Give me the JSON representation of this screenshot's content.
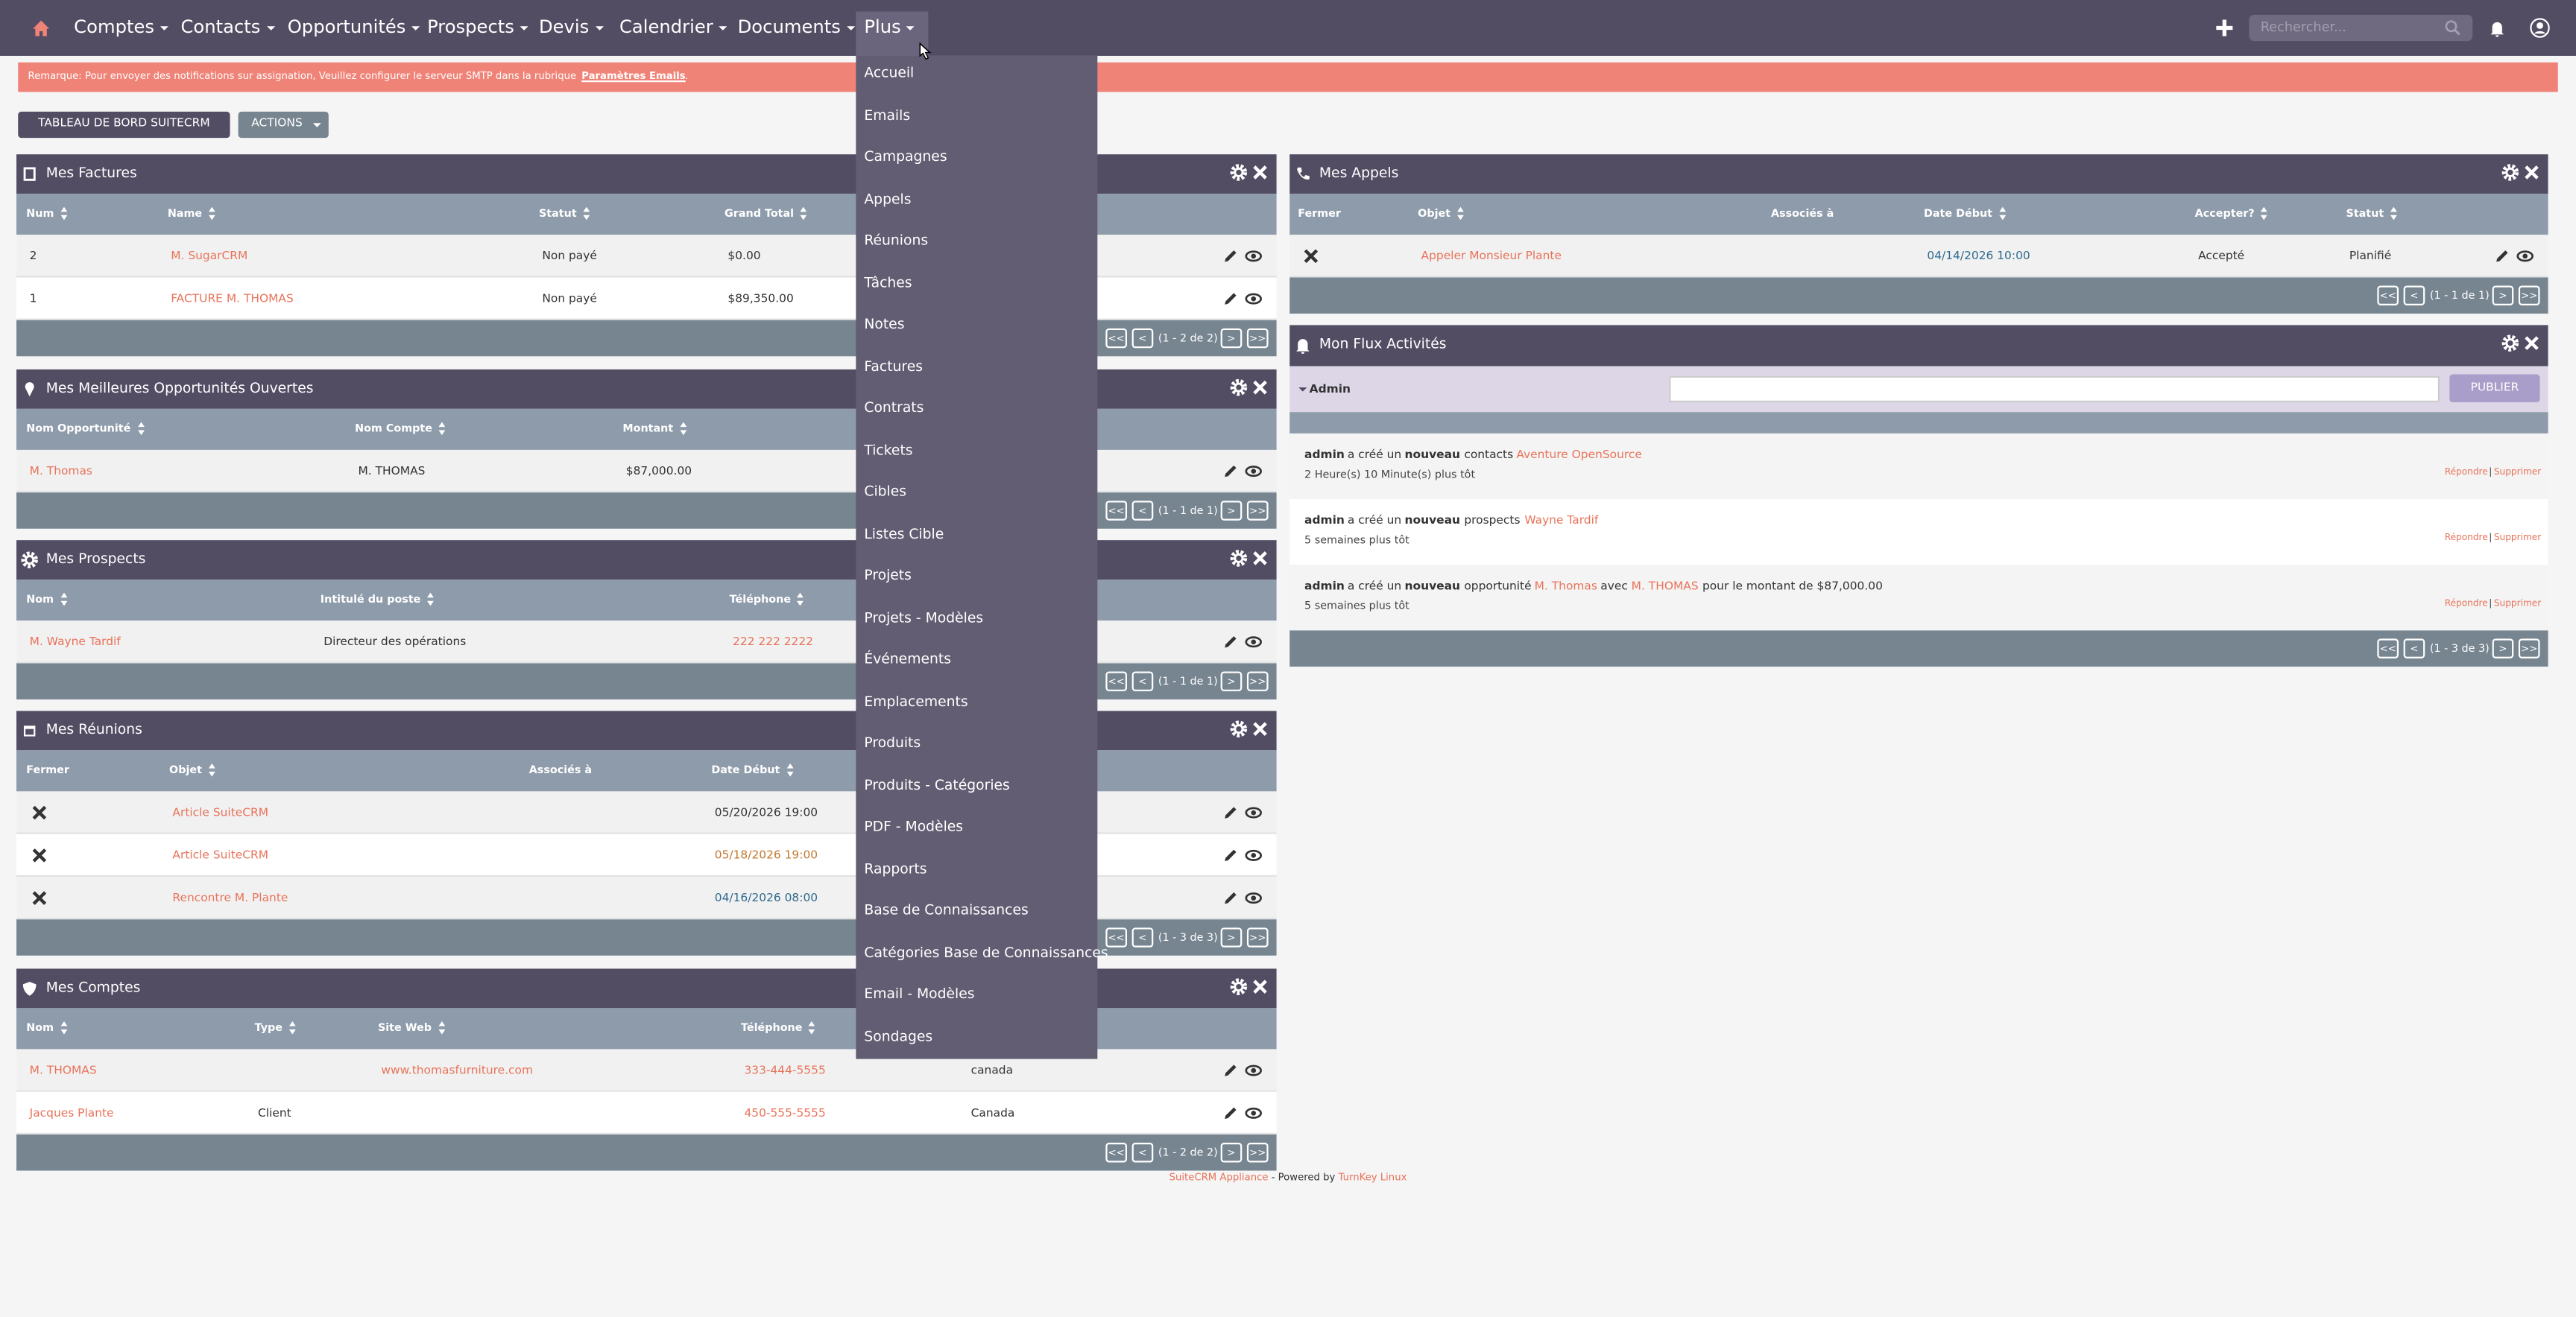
{
  "nav": {
    "items": [
      "Comptes",
      "Contacts",
      "Opportunités",
      "Prospects",
      "Devis",
      "Calendrier",
      "Documents",
      "Plus"
    ],
    "search_placeholder": "Rechercher..."
  },
  "notice": {
    "text": "Remarque: Pour envoyer des notifications sur assignation, Veuillez configurer le serveur SMTP dans la rubrique",
    "link": "Paramètres Emails",
    "end": "."
  },
  "toolbar": {
    "dashboard": "TABLEAU DE BORD SUITECRM",
    "actions": "ACTIONS"
  },
  "pager_buttons": [
    "<<",
    "<",
    ">",
    ">>"
  ],
  "dashlets": [
    {
      "title": "Mes Factures",
      "columns": [
        "Num",
        "Name",
        "Statut",
        "Grand Total"
      ],
      "rows": [
        [
          "2",
          "M. SugarCRM",
          "Non payé",
          "$0.00"
        ],
        [
          "1",
          "FACTURE M. THOMAS",
          "Non payé",
          "$89,350.00"
        ]
      ],
      "pager": "(1 - 2 de 2)"
    },
    {
      "title": "Mes Meilleures Opportunités Ouvertes",
      "columns": [
        "Nom Opportunité",
        "Nom Compte",
        "Montant"
      ],
      "rows": [
        [
          "M. Thomas",
          "M. THOMAS",
          "$87,000.00"
        ]
      ],
      "pager": "(1 - 1 de 1)"
    },
    {
      "title": "Mes Prospects",
      "columns": [
        "Nom",
        "Intitulé du poste",
        "Téléphone"
      ],
      "rows": [
        [
          "M. Wayne Tardif",
          "Directeur des opérations",
          "222 222 2222"
        ]
      ],
      "pager": "(1 - 1 de 1)"
    },
    {
      "title": "Mes Réunions",
      "columns": [
        "Fermer",
        "Objet",
        "Associés à",
        "Date Début"
      ],
      "rows": [
        [
          null,
          "Article SuiteCRM",
          null,
          "05/20/2026 19:00"
        ],
        [
          null,
          "Article SuiteCRM",
          null,
          "05/18/2026 19:00"
        ],
        [
          null,
          "Rencontre M. Plante",
          null,
          "04/16/2026 08:00"
        ]
      ],
      "pager": "(1 - 3 de 3)"
    },
    {
      "title": "Mes Comptes",
      "columns": [
        "Nom",
        "Type",
        "Site Web",
        "Téléphone",
        null
      ],
      "rows": [
        [
          "M. THOMAS",
          null,
          "www.thomasfurniture.com",
          "333-444-5555",
          "canada"
        ],
        [
          "Jacques Plante",
          "Client",
          null,
          "450-555-5555",
          "Canada"
        ]
      ],
      "pager": "(1 - 2 de 2)"
    }
  ],
  "calls": {
    "title": "Mes Appels",
    "columns": [
      "Fermer",
      "Objet",
      "Associés à",
      "Date Début",
      "Accepter?",
      "Statut"
    ],
    "rows": [
      [
        null,
        "Appeler Monsieur Plante",
        null,
        "04/14/2026 10:00",
        "Accepté",
        "Planifié"
      ]
    ],
    "pager": "(1 - 1 de 1)"
  },
  "activity": {
    "title": "Mon Flux Activités",
    "user": "Admin",
    "button": "PUBLIER",
    "reply": "Répondre",
    "separator": "|",
    "delete": "Supprimer",
    "pager": "(1 - 3 de 3)",
    "entries": [
      {
        "segments": [
          "admin",
          " a créé un ",
          "nouveau",
          " contacts ",
          "Aventure OpenSource"
        ],
        "time": "2 Heure(s) 10 Minute(s) plus tôt"
      },
      {
        "segments": [
          "admin",
          " a créé un ",
          "nouveau",
          " prospects ",
          "Wayne Tardif"
        ],
        "time": "5 semaines plus tôt"
      },
      {
        "segments": [
          "admin",
          " a créé un ",
          "nouveau",
          " opportunité ",
          "M. Thomas",
          " avec ",
          "M. THOMAS",
          " pour le montant de $87,000.00"
        ],
        "time": "5 semaines plus tôt"
      }
    ]
  },
  "menu": {
    "items": [
      "Accueil",
      "Emails",
      "Campagnes",
      "Appels",
      "Réunions",
      "Tâches",
      "Notes",
      "Factures",
      "Contrats",
      "Tickets",
      "Cibles",
      "Listes Cible",
      "Projets",
      "Projets - Modèles",
      "Événements",
      "Emplacements",
      "Produits",
      "Produits - Catégories",
      "PDF - Modèles",
      "Rapports",
      "Base de Connaissances",
      "Catégories Base de Connaissances",
      "Email - Modèles",
      "Sondages"
    ]
  },
  "footer": {
    "appliance": "SuiteCRM Appliance",
    "powered": " - Powered by ",
    "turnkey": "TurnKey Linux"
  }
}
